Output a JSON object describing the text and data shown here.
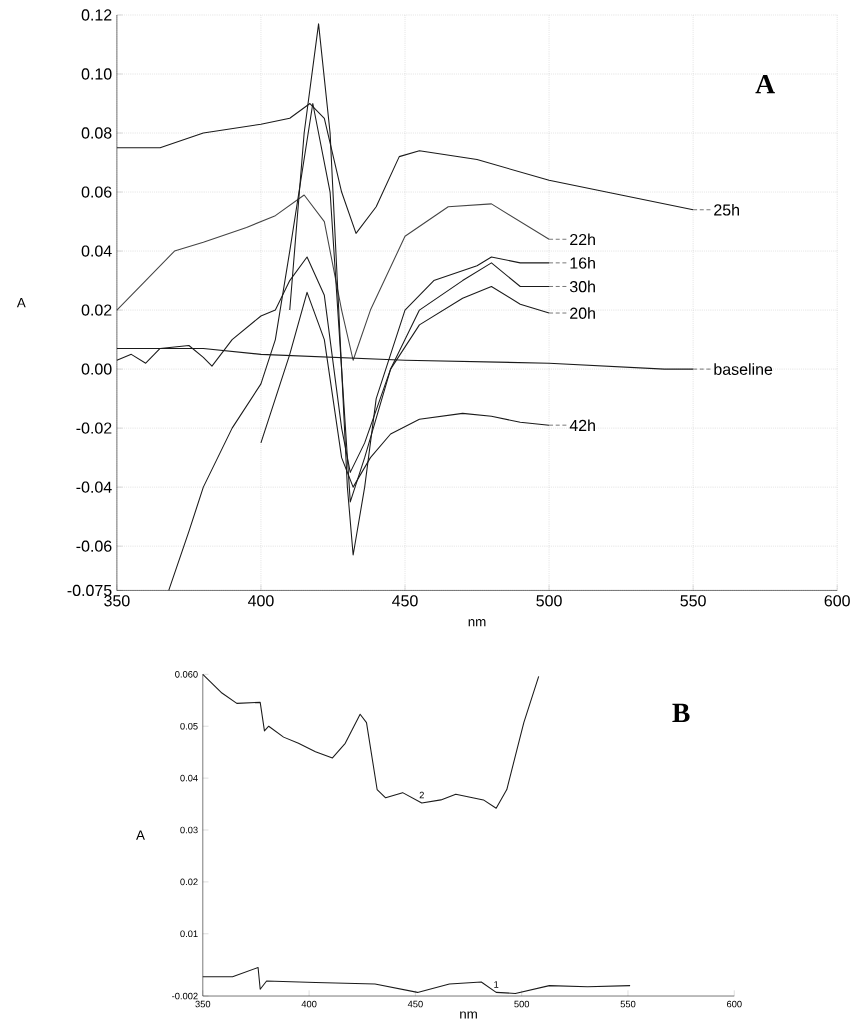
{
  "chart_data": [
    {
      "type": "line",
      "xlabel": "nm",
      "ylabel": "A",
      "xlim": [
        350,
        600
      ],
      "ylim": [
        -0.075,
        0.12
      ],
      "grid": true,
      "xticks": [
        350,
        400,
        450,
        500,
        550,
        600
      ],
      "yticks": [
        {
          "value": 0.12,
          "label": "0.12"
        },
        {
          "value": 0.1,
          "label": "0.10"
        },
        {
          "value": 0.08,
          "label": "0.08"
        },
        {
          "value": 0.06,
          "label": "0.06"
        },
        {
          "value": 0.04,
          "label": "0.04"
        },
        {
          "value": 0.02,
          "label": "0.02"
        },
        {
          "value": 0,
          "label": "0.00"
        },
        {
          "value": -0.02,
          "label": "-0.02"
        },
        {
          "value": -0.04,
          "label": "-0.04"
        },
        {
          "value": -0.06,
          "label": "-0.06"
        },
        {
          "value": -0.075,
          "label": "-0.075"
        }
      ],
      "annotations": [
        "A"
      ],
      "series": [
        {
          "name": "25h",
          "color": "#1a1a1a",
          "x": [
            350,
            365,
            380,
            400,
            410,
            417,
            422,
            428,
            433,
            440,
            448,
            455,
            475,
            500,
            525,
            550
          ],
          "values": [
            0.075,
            0.075,
            0.08,
            0.083,
            0.085,
            0.09,
            0.085,
            0.06,
            0.046,
            0.055,
            0.072,
            0.074,
            0.071,
            0.064,
            0.059,
            0.054
          ]
        },
        {
          "name": "22h",
          "color": "#444444",
          "x": [
            350,
            360,
            370,
            380,
            395,
            405,
            415,
            422,
            428,
            432,
            438,
            450,
            465,
            480,
            490,
            500
          ],
          "values": [
            0.02,
            0.03,
            0.04,
            0.043,
            0.048,
            0.052,
            0.059,
            0.05,
            0.02,
            0.003,
            0.02,
            0.045,
            0.055,
            0.056,
            0.05,
            0.044
          ]
        },
        {
          "name": "16h",
          "color": "#1a1a1a",
          "x": [
            410,
            415,
            420,
            424,
            428,
            430,
            432,
            436,
            440,
            450,
            460,
            475,
            480,
            490,
            500
          ],
          "values": [
            0.02,
            0.08,
            0.117,
            0.08,
            0.0,
            -0.04,
            -0.063,
            -0.04,
            -0.01,
            0.02,
            0.03,
            0.035,
            0.038,
            0.036,
            0.036
          ]
        },
        {
          "name": "30h",
          "color": "#1a1a1a",
          "x": [
            368,
            375,
            380,
            390,
            400,
            405,
            410,
            418,
            424,
            428,
            431,
            436,
            445,
            455,
            470,
            480,
            490,
            500
          ],
          "values": [
            -0.075,
            -0.055,
            -0.04,
            -0.02,
            -0.005,
            0.01,
            0.04,
            0.09,
            0.06,
            0.0,
            -0.045,
            -0.03,
            0.0,
            0.02,
            0.03,
            0.036,
            0.028,
            0.028
          ]
        },
        {
          "name": "20h",
          "color": "#1a1a1a",
          "x": [
            350,
            355,
            360,
            365,
            375,
            380,
            383,
            390,
            400,
            405,
            410,
            416,
            422,
            428,
            431,
            436,
            445,
            455,
            470,
            480,
            490,
            500
          ],
          "values": [
            0.003,
            0.005,
            0.002,
            0.007,
            0.008,
            0.004,
            0.001,
            0.01,
            0.018,
            0.02,
            0.03,
            0.038,
            0.025,
            -0.02,
            -0.035,
            -0.025,
            0.0,
            0.015,
            0.024,
            0.028,
            0.022,
            0.019
          ]
        },
        {
          "name": "baseline",
          "color": "#1a1a1a",
          "x": [
            350,
            380,
            400,
            450,
            500,
            540,
            550
          ],
          "values": [
            0.007,
            0.007,
            0.005,
            0.003,
            0.002,
            0.0,
            0.0
          ]
        },
        {
          "name": "42h",
          "color": "#1a1a1a",
          "x": [
            400,
            405,
            410,
            416,
            422,
            428,
            432,
            438,
            445,
            455,
            470,
            480,
            490,
            500
          ],
          "values": [
            -0.025,
            -0.01,
            0.005,
            0.026,
            0.01,
            -0.03,
            -0.04,
            -0.03,
            -0.022,
            -0.017,
            -0.015,
            -0.016,
            -0.018,
            -0.019
          ]
        }
      ]
    },
    {
      "type": "line",
      "xlabel": "nm",
      "ylabel": "A",
      "xlim": [
        350,
        600
      ],
      "ylim": [
        -0.002,
        0.06
      ],
      "xticks": [
        350,
        400,
        450,
        500,
        550,
        600
      ],
      "yticks": [
        {
          "value": 0.06,
          "label": "0.060"
        },
        0.05,
        0.04,
        0.03,
        0.02,
        0.01,
        -0.002
      ],
      "annotations": [
        "B"
      ],
      "series": [
        {
          "name": "2",
          "color": "#1a1a1a",
          "x": [
            350,
            359,
            366,
            377,
            379,
            381,
            388,
            395,
            403,
            411,
            417,
            424,
            427,
            432,
            436,
            444,
            453,
            462,
            469,
            482,
            488,
            493,
            501,
            508
          ],
          "values": [
            0.06,
            0.0564,
            0.0544,
            0.0546,
            0.0491,
            0.05,
            0.0479,
            0.0467,
            0.0451,
            0.0439,
            0.0467,
            0.0523,
            0.0507,
            0.0378,
            0.0362,
            0.0372,
            0.0352,
            0.0358,
            0.0369,
            0.0358,
            0.0342,
            0.0378,
            0.0507,
            0.0596
          ]
        },
        {
          "name": "1",
          "color": "#1a1a1a",
          "x": [
            350,
            364,
            376,
            377,
            380,
            403,
            431,
            451,
            466,
            481,
            488,
            497,
            513,
            531,
            551
          ],
          "values": [
            0.0017,
            0.0017,
            0.0035,
            -0.0007,
            0.0009,
            0.0006,
            0.0003,
            -0.0013,
            0.0003,
            0.0007,
            -0.0013,
            -0.0015,
            0.0,
            -0.0002,
            0.0
          ]
        }
      ]
    }
  ]
}
